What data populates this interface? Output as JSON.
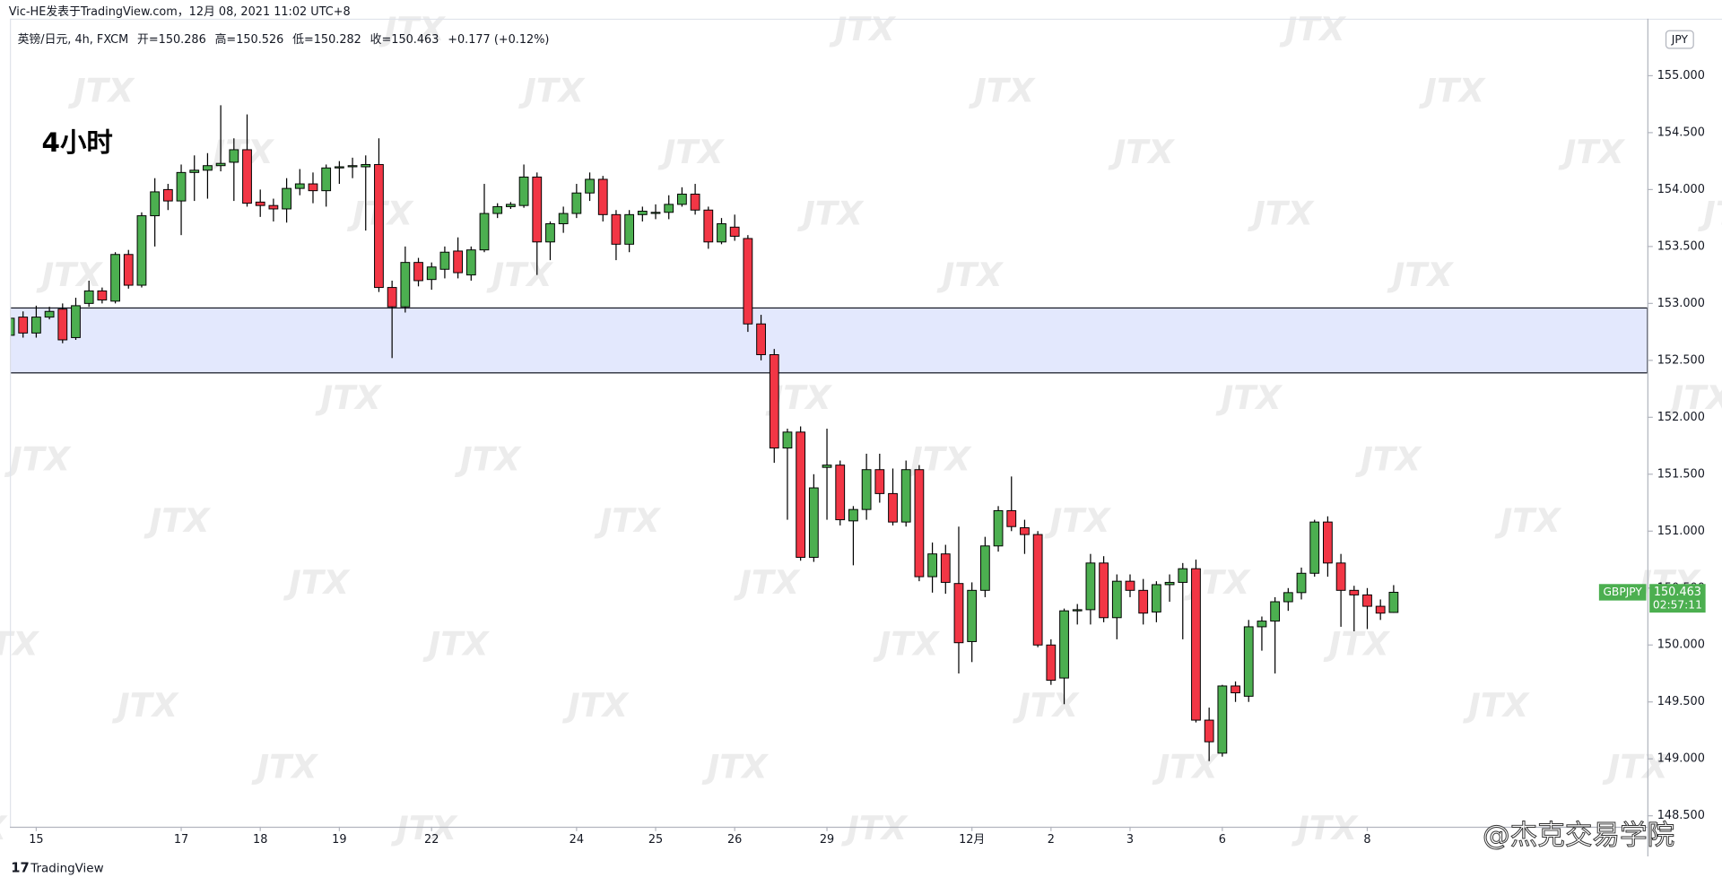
{
  "header": "Vic-HE发表于TradingView.com，12月 08, 2021 11:02 UTC+8",
  "chart_data": {
    "type": "candlestick",
    "symbol": "英镑/日元, 4h, FXCM",
    "legend_labels": [
      "开=",
      "高=",
      "低=",
      "收="
    ],
    "change": "+0.177 (+0.12%)",
    "annotation": "4小时",
    "currency": "JPY",
    "ticker": "GBPJPY",
    "countdown": "02:57:11",
    "watermark": "JTX",
    "up_color": "#4caf50",
    "down_color": "#f23645",
    "wick_color": "#000000",
    "zone": {
      "low": 152.39,
      "high": 152.96,
      "color": "#e3e8fd"
    },
    "ylim": [
      148.404,
      155.501
    ],
    "yticks": [
      {
        "value": 148.5,
        "label": "148.500"
      },
      {
        "value": 149,
        "label": "149.000"
      },
      {
        "value": 149.5,
        "label": "149.500"
      },
      {
        "value": 150,
        "label": "150.000"
      },
      {
        "value": 150.5,
        "label": "150.500"
      },
      {
        "value": 151,
        "label": "151.000"
      },
      {
        "value": 151.5,
        "label": "151.500"
      },
      {
        "value": 152,
        "label": "152.000"
      },
      {
        "value": 152.5,
        "label": "152.500"
      },
      {
        "value": 153,
        "label": "153.000"
      },
      {
        "value": 153.5,
        "label": "153.500"
      },
      {
        "value": 154,
        "label": "154.000"
      },
      {
        "value": 154.5,
        "label": "154.500"
      },
      {
        "value": 155,
        "label": "155.000"
      }
    ],
    "categories": [
      null,
      null,
      "15",
      null,
      null,
      null,
      null,
      null,
      null,
      null,
      null,
      null,
      null,
      "17",
      null,
      null,
      null,
      null,
      null,
      "18",
      null,
      null,
      null,
      null,
      null,
      "19",
      null,
      null,
      null,
      null,
      null,
      null,
      "22",
      null,
      null,
      null,
      null,
      null,
      null,
      null,
      null,
      null,
      null,
      "24",
      null,
      null,
      null,
      null,
      null,
      "25",
      null,
      null,
      null,
      null,
      null,
      "26",
      null,
      null,
      null,
      null,
      null,
      null,
      "29",
      null,
      null,
      null,
      null,
      null,
      null,
      null,
      null,
      null,
      null,
      "12月",
      null,
      null,
      null,
      null,
      null,
      "2",
      null,
      null,
      null,
      null,
      null,
      "3",
      null,
      null,
      null,
      null,
      null,
      null,
      "6",
      null,
      null,
      null,
      null,
      null,
      null,
      null,
      null,
      null,
      null,
      "8",
      null,
      null
    ],
    "open": [
      152.72,
      152.88,
      152.74,
      152.88,
      152.95,
      152.7,
      153.0,
      153.11,
      153.02,
      153.43,
      153.16,
      153.77,
      154.0,
      153.9,
      154.15,
      154.17,
      154.21,
      154.24,
      154.35,
      153.89,
      153.86,
      153.83,
      154.01,
      154.05,
      153.99,
      154.19,
      154.2,
      154.2,
      154.22,
      153.14,
      152.97,
      153.36,
      153.21,
      153.3,
      153.46,
      153.25,
      153.47,
      153.79,
      153.85,
      153.86,
      154.11,
      153.54,
      153.7,
      153.79,
      153.97,
      154.09,
      153.78,
      153.52,
      153.78,
      153.8,
      153.8,
      153.87,
      153.96,
      153.82,
      153.54,
      153.67,
      153.57,
      152.82,
      152.55,
      151.73,
      151.87,
      150.77,
      151.56,
      151.58,
      151.09,
      151.19,
      151.54,
      151.33,
      151.08,
      151.54,
      150.6,
      150.8,
      150.54,
      150.03,
      150.48,
      150.87,
      151.18,
      151.03,
      150.97,
      150.0,
      149.71,
      150.3,
      150.31,
      150.72,
      150.24,
      150.56,
      150.48,
      150.29,
      150.53,
      150.55,
      150.67,
      149.34,
      149.05,
      149.64,
      149.55,
      150.16,
      150.21,
      150.38,
      150.46,
      150.63,
      151.08,
      150.72,
      150.48,
      150.44,
      150.34,
      150.286
    ],
    "high": [
      152.95,
      152.93,
      152.98,
      152.97,
      153.0,
      153.05,
      153.2,
      153.14,
      153.45,
      153.47,
      153.8,
      154.1,
      154.05,
      154.22,
      154.3,
      154.32,
      154.74,
      154.45,
      154.66,
      154.0,
      153.92,
      154.1,
      154.18,
      154.15,
      154.22,
      154.25,
      154.28,
      154.3,
      154.45,
      153.2,
      153.5,
      153.4,
      153.36,
      153.5,
      153.58,
      153.5,
      154.05,
      153.88,
      153.89,
      154.22,
      154.15,
      153.72,
      153.85,
      154.05,
      154.15,
      154.12,
      153.82,
      153.82,
      153.85,
      153.87,
      153.95,
      154.02,
      154.05,
      153.85,
      153.75,
      153.78,
      153.6,
      152.9,
      152.6,
      151.9,
      151.92,
      151.5,
      151.9,
      151.62,
      151.22,
      151.68,
      151.68,
      151.55,
      151.62,
      151.58,
      150.9,
      150.88,
      151.04,
      150.55,
      150.95,
      151.22,
      151.48,
      151.1,
      151.0,
      150.05,
      150.32,
      150.36,
      150.8,
      150.78,
      150.62,
      150.62,
      150.58,
      150.56,
      150.62,
      150.72,
      150.75,
      149.45,
      149.65,
      149.68,
      150.22,
      150.25,
      150.42,
      150.5,
      150.68,
      151.1,
      151.13,
      150.8,
      150.52,
      150.5,
      150.4,
      150.526
    ],
    "low": [
      152.48,
      152.7,
      152.7,
      152.86,
      152.65,
      152.68,
      152.97,
      153.0,
      153.0,
      153.13,
      153.14,
      153.5,
      153.82,
      153.6,
      153.9,
      153.92,
      154.16,
      153.9,
      153.85,
      153.76,
      153.72,
      153.71,
      153.95,
      153.88,
      153.85,
      154.05,
      154.1,
      153.64,
      153.1,
      152.52,
      152.92,
      153.15,
      153.12,
      153.22,
      153.22,
      153.2,
      153.45,
      153.75,
      153.83,
      153.84,
      153.25,
      153.38,
      153.62,
      153.75,
      153.9,
      153.72,
      153.38,
      153.45,
      153.72,
      153.74,
      153.74,
      153.85,
      153.78,
      153.48,
      153.52,
      153.55,
      152.75,
      152.5,
      151.6,
      151.1,
      150.74,
      150.73,
      151.1,
      151.05,
      150.7,
      151.1,
      151.25,
      151.05,
      151.04,
      150.56,
      150.46,
      150.45,
      149.75,
      149.85,
      150.42,
      150.82,
      151.0,
      150.8,
      149.98,
      149.65,
      149.48,
      150.18,
      150.18,
      150.2,
      150.05,
      150.42,
      150.18,
      150.2,
      150.38,
      150.05,
      149.32,
      148.98,
      149.02,
      149.5,
      149.5,
      149.95,
      149.75,
      150.3,
      150.4,
      150.6,
      150.6,
      150.16,
      150.12,
      150.14,
      150.22,
      150.282
    ],
    "close": [
      152.87,
      152.74,
      152.88,
      152.93,
      152.68,
      152.98,
      153.11,
      153.03,
      153.43,
      153.16,
      153.77,
      153.98,
      153.9,
      154.15,
      154.17,
      154.21,
      154.23,
      154.35,
      153.88,
      153.86,
      153.83,
      154.01,
      154.05,
      153.99,
      154.19,
      154.2,
      154.21,
      154.22,
      153.14,
      152.97,
      153.36,
      153.2,
      153.32,
      153.45,
      153.27,
      153.47,
      153.79,
      153.85,
      153.87,
      154.11,
      153.54,
      153.7,
      153.79,
      153.97,
      154.09,
      153.78,
      153.52,
      153.78,
      153.81,
      153.8,
      153.87,
      153.96,
      153.82,
      153.54,
      153.7,
      153.59,
      152.82,
      152.55,
      151.73,
      151.87,
      150.77,
      151.38,
      151.58,
      151.1,
      151.19,
      151.54,
      151.33,
      151.08,
      151.54,
      150.6,
      150.8,
      150.55,
      150.02,
      150.48,
      150.87,
      151.18,
      151.04,
      150.97,
      150.0,
      149.69,
      150.3,
      150.31,
      150.72,
      150.24,
      150.56,
      150.48,
      150.28,
      150.53,
      150.55,
      150.67,
      149.34,
      149.15,
      149.64,
      149.58,
      150.16,
      150.21,
      150.38,
      150.46,
      150.63,
      151.08,
      150.72,
      150.48,
      150.44,
      150.34,
      150.28,
      150.463
    ]
  },
  "footer": {
    "brand": "TradingView",
    "logo": "17",
    "credit": "@杰克交易学院"
  }
}
